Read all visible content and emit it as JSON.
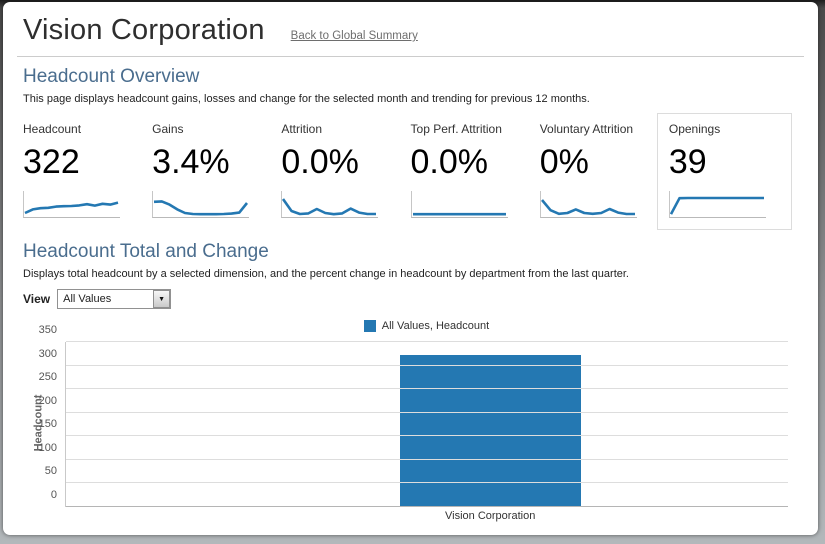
{
  "colors": {
    "accent": "#2478b2",
    "heading": "#4a6d8e",
    "grid": "#dddddd"
  },
  "header": {
    "title": "Vision Corporation",
    "back_link": "Back to Global Summary"
  },
  "overview": {
    "heading": "Headcount Overview",
    "description": "This page displays headcount gains, losses and change for the selected month and trending for previous 12 months.",
    "kpis": [
      {
        "label": "Headcount",
        "value": "322",
        "spark": [
          10,
          28,
          34,
          36,
          42,
          44,
          45,
          48,
          54,
          47,
          56,
          52,
          62
        ]
      },
      {
        "label": "Gains",
        "value": "3.4%",
        "spark": [
          66,
          68,
          52,
          28,
          10,
          5,
          4,
          4,
          4,
          5,
          7,
          12,
          60
        ]
      },
      {
        "label": "Attrition",
        "value": "0.0%",
        "spark": [
          80,
          20,
          5,
          8,
          30,
          10,
          4,
          8,
          32,
          12,
          5,
          5
        ]
      },
      {
        "label": "Top Perf. Attrition",
        "value": "0.0%",
        "spark": [
          4,
          4,
          4,
          4,
          4,
          4,
          4,
          4,
          4,
          4,
          4,
          4
        ]
      },
      {
        "label": "Voluntary Attrition",
        "value": "0%",
        "spark": [
          75,
          24,
          6,
          10,
          28,
          10,
          6,
          10,
          30,
          12,
          5,
          5
        ]
      },
      {
        "label": "Openings",
        "value": "39",
        "spark": [
          4,
          84,
          85,
          85,
          85,
          85,
          85,
          85,
          85,
          85,
          85,
          85
        ]
      }
    ]
  },
  "total_change": {
    "heading": "Headcount Total and Change",
    "description": "Displays total headcount by a selected dimension, and the percent change in headcount by department from the last quarter.",
    "view_label": "View",
    "view_value": "All Values"
  },
  "chart_data": {
    "type": "bar",
    "legend": [
      "All Values, Headcount"
    ],
    "categories": [
      "Vision Corporation"
    ],
    "series": [
      {
        "name": "All Values, Headcount",
        "values": [
          322
        ]
      }
    ],
    "xlabel": "",
    "ylabel": "Headcount",
    "ylim": [
      0,
      350
    ],
    "yticks": [
      0,
      50,
      100,
      150,
      200,
      250,
      300,
      350
    ],
    "grid": true,
    "legend_position": "top"
  }
}
